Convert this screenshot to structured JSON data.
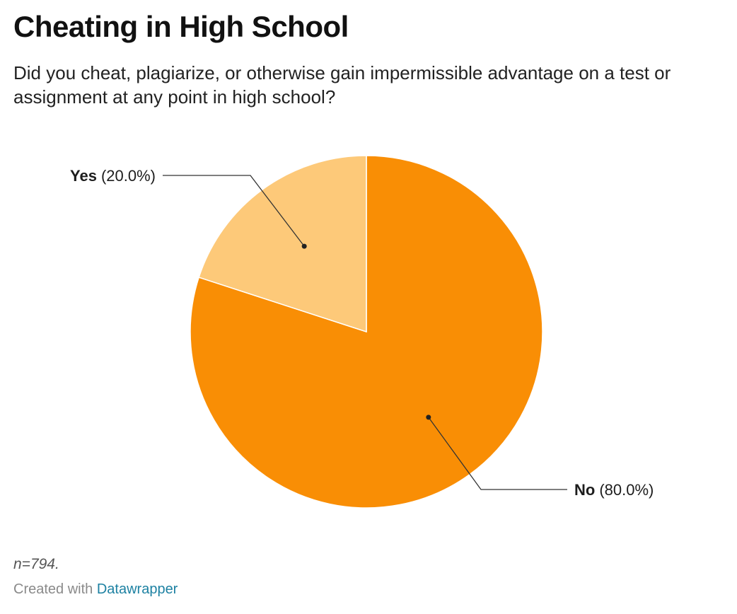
{
  "chart_data": {
    "type": "pie",
    "title": "Cheating in High School",
    "subtitle": "Did you cheat, plagiarize, or otherwise gain impermissible advantage on a test or assignment at any point in high school?",
    "slices": [
      {
        "name": "No",
        "value": 80.0,
        "label": "(80.0%)",
        "color": "#f98e05"
      },
      {
        "name": "Yes",
        "value": 20.0,
        "label": "(20.0%)",
        "color": "#fdc979"
      }
    ],
    "start": "12 o'clock",
    "direction": "clockwise"
  },
  "notes": "n=794.",
  "credit": {
    "prefix": "Created with",
    "link_text": "Datawrapper",
    "link_color": "#1d81a2"
  }
}
